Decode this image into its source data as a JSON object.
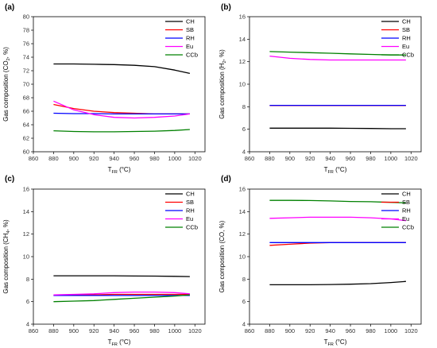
{
  "chart_data": [
    {
      "panel": "(a)",
      "type": "line",
      "xlabel": "T",
      "xlabel_sub": "FR",
      "xlabel_unit": " (°C)",
      "ylabel": "Gas composition (CO",
      "ylabel_sub": "2",
      "ylabel_unit": ", %)",
      "xlim": [
        860,
        1030
      ],
      "ylim": [
        60,
        80
      ],
      "xticks": [
        860,
        880,
        900,
        920,
        940,
        960,
        980,
        1000,
        1020
      ],
      "yticks": [
        60,
        62,
        64,
        66,
        68,
        70,
        72,
        74,
        76,
        78,
        80
      ],
      "legend_position": "top-right",
      "x": [
        880,
        900,
        920,
        940,
        960,
        980,
        1000,
        1015
      ],
      "series": [
        {
          "name": "CH",
          "color": "#000000",
          "values": [
            73.0,
            73.0,
            72.95,
            72.9,
            72.8,
            72.6,
            72.1,
            71.6
          ]
        },
        {
          "name": "SB",
          "color": "#ff0000",
          "values": [
            67.0,
            66.4,
            66.0,
            65.8,
            65.7,
            65.6,
            65.6,
            65.6
          ]
        },
        {
          "name": "RH",
          "color": "#0000ff",
          "values": [
            65.7,
            65.65,
            65.65,
            65.6,
            65.6,
            65.6,
            65.6,
            65.6
          ]
        },
        {
          "name": "Eu",
          "color": "#ff00ff",
          "values": [
            67.5,
            66.2,
            65.5,
            65.1,
            65.0,
            65.1,
            65.3,
            65.6
          ]
        },
        {
          "name": "CCb",
          "color": "#008000",
          "values": [
            63.1,
            63.0,
            62.95,
            62.95,
            63.0,
            63.05,
            63.15,
            63.3
          ]
        }
      ]
    },
    {
      "panel": "(b)",
      "type": "line",
      "xlabel": "T",
      "xlabel_sub": "FR",
      "xlabel_unit": " (°C)",
      "ylabel": "Gas composition (H",
      "ylabel_sub": "2",
      "ylabel_unit": ", %)",
      "xlim": [
        860,
        1030
      ],
      "ylim": [
        4,
        16
      ],
      "xticks": [
        860,
        880,
        900,
        920,
        940,
        960,
        980,
        1000,
        1020
      ],
      "yticks": [
        4,
        6,
        8,
        10,
        12,
        14,
        16
      ],
      "legend_position": "top-right",
      "x": [
        880,
        900,
        920,
        940,
        960,
        980,
        1000,
        1015
      ],
      "series": [
        {
          "name": "CH",
          "color": "#000000",
          "values": [
            6.1,
            6.1,
            6.1,
            6.1,
            6.08,
            6.07,
            6.05,
            6.05
          ]
        },
        {
          "name": "SB",
          "color": "#ff0000",
          "values": [
            8.1,
            8.1,
            8.1,
            8.1,
            8.1,
            8.1,
            8.1,
            8.1
          ]
        },
        {
          "name": "RH",
          "color": "#0000ff",
          "values": [
            8.12,
            8.12,
            8.12,
            8.12,
            8.12,
            8.12,
            8.12,
            8.12
          ]
        },
        {
          "name": "Eu",
          "color": "#ff00ff",
          "values": [
            12.5,
            12.3,
            12.2,
            12.15,
            12.15,
            12.15,
            12.15,
            12.15
          ]
        },
        {
          "name": "CCb",
          "color": "#008000",
          "values": [
            12.9,
            12.85,
            12.8,
            12.75,
            12.7,
            12.65,
            12.6,
            12.6
          ]
        }
      ]
    },
    {
      "panel": "(c)",
      "type": "line",
      "xlabel": "T",
      "xlabel_sub": "FR",
      "xlabel_unit": " (°C)",
      "ylabel": "Gas composition (CH",
      "ylabel_sub": "4",
      "ylabel_unit": ", %)",
      "xlim": [
        860,
        1030
      ],
      "ylim": [
        4,
        16
      ],
      "xticks": [
        860,
        880,
        900,
        920,
        940,
        960,
        980,
        1000,
        1020
      ],
      "yticks": [
        4,
        6,
        8,
        10,
        12,
        14,
        16
      ],
      "legend_position": "top-right",
      "x": [
        880,
        900,
        920,
        940,
        960,
        980,
        1000,
        1015
      ],
      "series": [
        {
          "name": "CH",
          "color": "#000000",
          "values": [
            8.3,
            8.3,
            8.3,
            8.3,
            8.28,
            8.27,
            8.25,
            8.23
          ]
        },
        {
          "name": "SB",
          "color": "#ff0000",
          "values": [
            6.55,
            6.6,
            6.6,
            6.65,
            6.65,
            6.65,
            6.65,
            6.65
          ]
        },
        {
          "name": "RH",
          "color": "#0000ff",
          "values": [
            6.55,
            6.55,
            6.55,
            6.55,
            6.55,
            6.55,
            6.55,
            6.55
          ]
        },
        {
          "name": "Eu",
          "color": "#ff00ff",
          "values": [
            6.6,
            6.65,
            6.7,
            6.8,
            6.85,
            6.85,
            6.8,
            6.7
          ]
        },
        {
          "name": "CCb",
          "color": "#008000",
          "values": [
            6.0,
            6.05,
            6.1,
            6.2,
            6.3,
            6.4,
            6.5,
            6.6
          ]
        }
      ]
    },
    {
      "panel": "(d)",
      "type": "line",
      "xlabel": "T",
      "xlabel_sub": "FR",
      "xlabel_unit": " (°C)",
      "ylabel": "Gas composition (CO, %)",
      "ylabel_sub": "",
      "ylabel_unit": "",
      "xlim": [
        860,
        1030
      ],
      "ylim": [
        4,
        16
      ],
      "xticks": [
        860,
        880,
        900,
        920,
        940,
        960,
        980,
        1000,
        1020
      ],
      "yticks": [
        4,
        6,
        8,
        10,
        12,
        14,
        16
      ],
      "legend_position": "top-right",
      "x": [
        880,
        900,
        920,
        940,
        960,
        980,
        1000,
        1015
      ],
      "series": [
        {
          "name": "CH",
          "color": "#000000",
          "values": [
            7.5,
            7.5,
            7.5,
            7.52,
            7.55,
            7.6,
            7.7,
            7.8
          ]
        },
        {
          "name": "SB",
          "color": "#ff0000",
          "values": [
            11.0,
            11.1,
            11.2,
            11.25,
            11.25,
            11.25,
            11.25,
            11.25
          ]
        },
        {
          "name": "RH",
          "color": "#0000ff",
          "values": [
            11.25,
            11.25,
            11.25,
            11.25,
            11.25,
            11.25,
            11.25,
            11.25
          ]
        },
        {
          "name": "Eu",
          "color": "#ff00ff",
          "values": [
            13.4,
            13.45,
            13.5,
            13.5,
            13.5,
            13.45,
            13.35,
            13.2
          ]
        },
        {
          "name": "CCb",
          "color": "#008000",
          "values": [
            15.0,
            15.0,
            14.98,
            14.95,
            14.9,
            14.88,
            14.82,
            14.78
          ]
        }
      ]
    }
  ]
}
